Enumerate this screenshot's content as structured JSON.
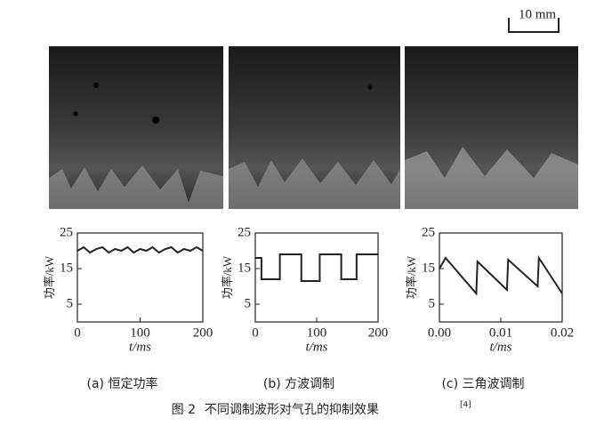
{
  "scale_bar": "10 mm",
  "chart_data": [
    {
      "type": "line",
      "caption": "(a)  恒定功率",
      "xlabel": "t/ms",
      "ylabel": "功率/kW",
      "color": "#222222",
      "x": [
        0,
        10,
        20,
        30,
        40,
        50,
        60,
        70,
        80,
        90,
        100,
        110,
        120,
        130,
        140,
        150,
        160,
        170,
        180,
        190,
        200
      ],
      "values": [
        20,
        21,
        19.5,
        20.5,
        21,
        19.5,
        20.5,
        20,
        21,
        19.5,
        20.5,
        20,
        21,
        19.5,
        20.5,
        21,
        19.5,
        20.5,
        20,
        21,
        20
      ],
      "xlim": [
        0,
        200
      ],
      "xticks": [
        0,
        100,
        200
      ],
      "ylim": [
        0,
        25
      ],
      "yticks": [
        5,
        15,
        25
      ]
    },
    {
      "type": "line",
      "caption": "(b)  方波调制",
      "xlabel": "t/ms",
      "ylabel": "功率/kW",
      "color": "#222222",
      "x": [
        0,
        10,
        10,
        40,
        40,
        75,
        75,
        105,
        105,
        140,
        140,
        165,
        165,
        200
      ],
      "values": [
        18,
        18,
        12,
        12,
        19,
        19,
        11.5,
        11.5,
        19,
        19,
        12,
        12,
        19,
        19
      ],
      "xlim": [
        0,
        200
      ],
      "xticks": [
        0,
        100,
        200
      ],
      "ylim": [
        0,
        25
      ],
      "yticks": [
        5,
        15,
        25
      ]
    },
    {
      "type": "line",
      "caption": "(c)  三角波调制",
      "xlabel": "t/ms",
      "ylabel": "功率/kW",
      "color": "#222222",
      "x": [
        0,
        0.001,
        0.006,
        0.0062,
        0.011,
        0.0112,
        0.016,
        0.0162,
        0.02
      ],
      "values": [
        15,
        18,
        8,
        17,
        9,
        17.5,
        10,
        18,
        8
      ],
      "xlim": [
        0,
        0.02
      ],
      "xticks": [
        {
          "value": 0,
          "label": "0.00"
        },
        0.01,
        0.02
      ],
      "ylim": [
        0,
        25
      ],
      "yticks": [
        5,
        15,
        25
      ]
    }
  ],
  "figure": {
    "label": "图 2",
    "title": "不同调制波形对气孔的抑制效果",
    "ref": "[4]"
  }
}
